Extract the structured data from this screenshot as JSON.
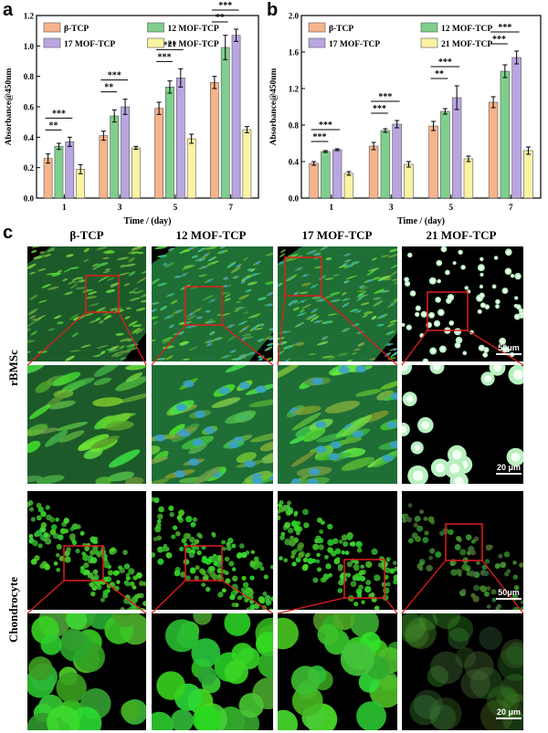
{
  "panels": {
    "a": "a",
    "b": "b",
    "c": "c"
  },
  "groups": [
    "β-TCP",
    "12 MOF-TCP",
    "17 MOF-TCP",
    "21 MOF-TCP"
  ],
  "colors": {
    "beta": "#f6b48a",
    "mof12": "#7fcf8c",
    "mof17": "#b9a6e0",
    "mof21": "#fbf3a4",
    "box": "#e11d1d"
  },
  "row_labels": [
    "rBMSc",
    "Chondrocyte"
  ],
  "scale_bars": {
    "low": "50μm",
    "high": "20 μm"
  },
  "chart_data": [
    {
      "type": "bar",
      "panel": "a",
      "xlabel": "Time / (day)",
      "ylabel": "Absorbance@450nm",
      "categories": [
        "1",
        "3",
        "5",
        "7"
      ],
      "ylim": [
        0.0,
        1.2
      ],
      "yticks": [
        "0.0",
        "0.2",
        "0.4",
        "0.6",
        "0.8",
        "1.0",
        "1.2"
      ],
      "series": [
        {
          "name": "β-TCP",
          "values": [
            0.26,
            0.41,
            0.59,
            0.76
          ],
          "errors": [
            0.03,
            0.03,
            0.04,
            0.04
          ]
        },
        {
          "name": "12 MOF-TCP",
          "values": [
            0.34,
            0.54,
            0.73,
            0.99
          ],
          "errors": [
            0.02,
            0.04,
            0.04,
            0.08
          ]
        },
        {
          "name": "17 MOF-TCP",
          "values": [
            0.37,
            0.6,
            0.79,
            1.07
          ],
          "errors": [
            0.03,
            0.05,
            0.06,
            0.04
          ]
        },
        {
          "name": "21 MOF-TCP",
          "values": [
            0.19,
            0.33,
            0.39,
            0.45
          ],
          "errors": [
            0.03,
            0.01,
            0.03,
            0.02
          ]
        }
      ],
      "significance": [
        {
          "day": "1",
          "pairs": [
            {
              "label": "**"
            },
            {
              "label": "***"
            }
          ]
        },
        {
          "day": "3",
          "pairs": [
            {
              "label": "**"
            },
            {
              "label": "***"
            }
          ]
        },
        {
          "day": "5",
          "pairs": [
            {
              "label": "***"
            },
            {
              "label": "***"
            }
          ]
        },
        {
          "day": "7",
          "pairs": [
            {
              "label": "**"
            },
            {
              "label": "***"
            }
          ]
        }
      ]
    },
    {
      "type": "bar",
      "panel": "b",
      "xlabel": "Time / (day)",
      "ylabel": "Absorbance@450nm",
      "categories": [
        "1",
        "3",
        "5",
        "7"
      ],
      "ylim": [
        0.0,
        2.0
      ],
      "yticks": [
        "0.0",
        "0.4",
        "0.8",
        "1.2",
        "1.6",
        "2.0"
      ],
      "series": [
        {
          "name": "β-TCP",
          "values": [
            0.38,
            0.57,
            0.79,
            1.05
          ],
          "errors": [
            0.02,
            0.04,
            0.05,
            0.06
          ]
        },
        {
          "name": "12 MOF-TCP",
          "values": [
            0.51,
            0.74,
            0.95,
            1.39
          ],
          "errors": [
            0.01,
            0.02,
            0.03,
            0.07
          ]
        },
        {
          "name": "17 MOF-TCP",
          "values": [
            0.53,
            0.81,
            1.1,
            1.54
          ],
          "errors": [
            0.01,
            0.04,
            0.13,
            0.07
          ]
        },
        {
          "name": "21 MOF-TCP",
          "values": [
            0.27,
            0.37,
            0.43,
            0.52
          ],
          "errors": [
            0.02,
            0.03,
            0.03,
            0.04
          ]
        }
      ],
      "significance": [
        {
          "day": "1",
          "pairs": [
            {
              "label": "***"
            },
            {
              "label": "***"
            }
          ]
        },
        {
          "day": "3",
          "pairs": [
            {
              "label": "***"
            },
            {
              "label": "***"
            }
          ]
        },
        {
          "day": "5",
          "pairs": [
            {
              "label": "**"
            },
            {
              "label": "***"
            }
          ]
        },
        {
          "day": "7",
          "pairs": [
            {
              "label": "***"
            },
            {
              "label": "***"
            }
          ]
        }
      ]
    }
  ]
}
